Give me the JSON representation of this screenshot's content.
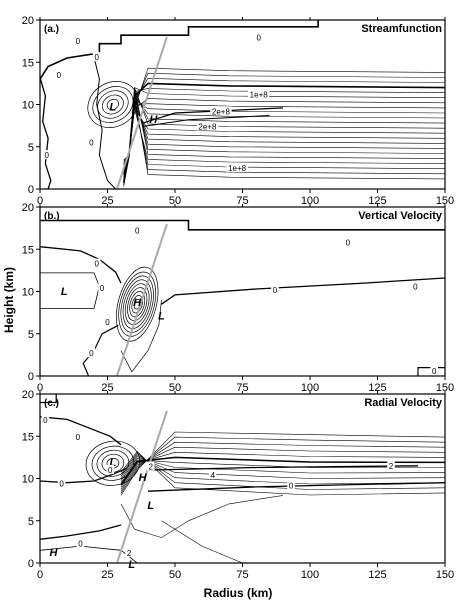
{
  "figure": {
    "ylabel": "Height (km)",
    "xlabel": "Radius (km)"
  },
  "chart_data": [
    {
      "type": "contour",
      "tag": "(a.)",
      "title": "Streamfunction",
      "xlim": [
        0,
        150
      ],
      "ylim": [
        0,
        20
      ],
      "xticks": [
        0,
        25,
        50,
        75,
        100,
        125,
        150
      ],
      "yticks": [
        0,
        5,
        10,
        15,
        20
      ],
      "grid": false,
      "annotations": [
        {
          "text": "L",
          "x": 27,
          "y": 9.3
        },
        {
          "text": "H",
          "x": 42,
          "y": 7.8
        }
      ],
      "contour_labels": [
        {
          "text": "0",
          "x": 7,
          "y": 13.5
        },
        {
          "text": "0",
          "x": 21,
          "y": 15.6
        },
        {
          "text": "0",
          "x": 14,
          "y": 17.5
        },
        {
          "text": "0",
          "x": 81,
          "y": 17.9
        },
        {
          "text": "0",
          "x": 2.5,
          "y": 4
        },
        {
          "text": "0",
          "x": 19,
          "y": 5.5
        },
        {
          "text": "1e+8",
          "x": 81,
          "y": 11.2
        },
        {
          "text": "2e+8",
          "x": 67,
          "y": 9.2
        },
        {
          "text": "2e+8",
          "x": 62,
          "y": 7.4
        },
        {
          "text": "1e+8",
          "x": 73,
          "y": 2.5
        }
      ]
    },
    {
      "type": "contour",
      "tag": "(b.)",
      "title": "Vertical Velocity",
      "xlim": [
        0,
        150
      ],
      "ylim": [
        0,
        20
      ],
      "xticks": [
        0,
        25,
        50,
        75,
        100,
        125,
        150
      ],
      "yticks": [
        0,
        5,
        10,
        15,
        20
      ],
      "grid": false,
      "annotations": [
        {
          "text": "L",
          "x": 9,
          "y": 9.6
        },
        {
          "text": "H",
          "x": 36,
          "y": 8.3
        },
        {
          "text": "L",
          "x": 45,
          "y": 6.7
        }
      ],
      "contour_labels": [
        {
          "text": "0",
          "x": 36,
          "y": 17.2
        },
        {
          "text": "0",
          "x": 114,
          "y": 15.8
        },
        {
          "text": "0",
          "x": 21,
          "y": 13.3
        },
        {
          "text": "0",
          "x": 23,
          "y": 10.4
        },
        {
          "text": "0",
          "x": 87,
          "y": 10.2
        },
        {
          "text": "0",
          "x": 139,
          "y": 10.6
        },
        {
          "text": "0",
          "x": 25,
          "y": 6.4
        },
        {
          "text": "0",
          "x": 19,
          "y": 2.7
        },
        {
          "text": "0",
          "x": 146,
          "y": 0.6
        }
      ]
    },
    {
      "type": "contour",
      "tag": "(c.)",
      "title": "Radial Velocity",
      "xlim": [
        0,
        150
      ],
      "ylim": [
        0,
        20
      ],
      "xticks": [
        0,
        25,
        50,
        75,
        100,
        125,
        150
      ],
      "yticks": [
        0,
        5,
        10,
        15,
        20
      ],
      "grid": false,
      "annotations": [
        {
          "text": "L",
          "x": 27,
          "y": 11.5
        },
        {
          "text": "H",
          "x": 38,
          "y": 9.7
        },
        {
          "text": "L",
          "x": 41,
          "y": 6.4
        },
        {
          "text": "H",
          "x": 5,
          "y": 0.8
        },
        {
          "text": "L",
          "x": 34,
          "y": -0.6
        }
      ],
      "contour_labels": [
        {
          "text": "0",
          "x": 2,
          "y": 16.9
        },
        {
          "text": "0",
          "x": 14,
          "y": 14.9
        },
        {
          "text": "0",
          "x": 26,
          "y": 11
        },
        {
          "text": "0",
          "x": 8,
          "y": 9.4
        },
        {
          "text": "0",
          "x": 93,
          "y": 9.2
        },
        {
          "text": "0",
          "x": 15,
          "y": 2.3
        },
        {
          "text": "2",
          "x": 41,
          "y": 11.4
        },
        {
          "text": "4",
          "x": 64,
          "y": 10.4
        },
        {
          "text": "2",
          "x": 130,
          "y": 11.5
        },
        {
          "text": "2",
          "x": 33,
          "y": 1.2
        }
      ]
    }
  ]
}
